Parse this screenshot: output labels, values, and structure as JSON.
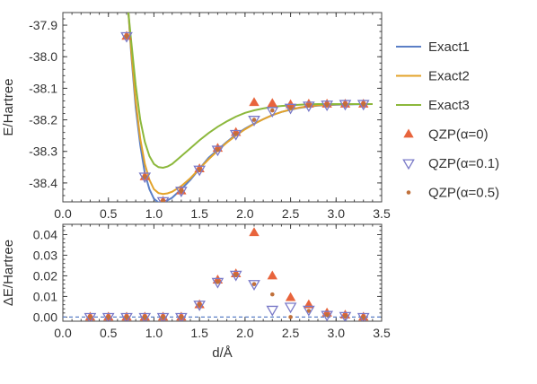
{
  "chart_data": [
    {
      "type": "line",
      "panel": "top",
      "xlabel": "",
      "ylabel": "E/Hartree",
      "xlim": [
        0.0,
        3.5
      ],
      "ylim": [
        -38.46,
        -37.86
      ],
      "x_ticks": [
        "0.0",
        "0.5",
        "1.0",
        "1.5",
        "2.0",
        "2.5",
        "3.0",
        "3.5"
      ],
      "x_tick_values": [
        0.0,
        0.5,
        1.0,
        1.5,
        2.0,
        2.5,
        3.0,
        3.5
      ],
      "y_ticks": [
        "-37.9",
        "-38.0",
        "-38.1",
        "-38.2",
        "-38.3",
        "-38.4"
      ],
      "y_tick_values": [
        -37.9,
        -38.0,
        -38.1,
        -38.2,
        -38.3,
        -38.4
      ],
      "legend_position": "right",
      "curves": [
        {
          "name": "Exact1",
          "color": "#5b7fc6",
          "x": [
            0.72,
            0.75,
            0.8,
            0.85,
            0.9,
            0.95,
            1.0,
            1.05,
            1.1,
            1.15,
            1.2,
            1.3,
            1.4,
            1.5,
            1.6,
            1.7,
            1.8,
            1.9,
            2.0,
            2.1,
            2.2,
            2.3,
            2.4,
            2.5,
            2.6,
            2.7,
            2.8,
            3.0,
            3.2,
            3.4
          ],
          "y": [
            -37.86,
            -37.99,
            -38.16,
            -38.28,
            -38.37,
            -38.42,
            -38.45,
            -38.462,
            -38.46,
            -38.455,
            -38.447,
            -38.42,
            -38.39,
            -38.355,
            -38.32,
            -38.295,
            -38.27,
            -38.247,
            -38.228,
            -38.212,
            -38.198,
            -38.185,
            -38.175,
            -38.168,
            -38.162,
            -38.158,
            -38.155,
            -38.152,
            -38.151,
            -38.15
          ]
        },
        {
          "name": "Exact2",
          "color": "#e3a32a",
          "x": [
            0.72,
            0.75,
            0.8,
            0.85,
            0.9,
            0.95,
            1.0,
            1.05,
            1.1,
            1.15,
            1.2,
            1.3,
            1.4,
            1.5,
            1.6,
            1.7,
            1.8,
            1.9,
            2.0,
            2.1,
            2.2,
            2.3,
            2.4,
            2.5,
            2.6,
            2.7,
            2.8,
            3.0,
            3.2,
            3.4
          ],
          "y": [
            -37.86,
            -37.98,
            -38.14,
            -38.26,
            -38.34,
            -38.39,
            -38.42,
            -38.432,
            -38.435,
            -38.433,
            -38.428,
            -38.41,
            -38.385,
            -38.355,
            -38.325,
            -38.298,
            -38.272,
            -38.25,
            -38.23,
            -38.213,
            -38.198,
            -38.185,
            -38.175,
            -38.167,
            -38.161,
            -38.157,
            -38.154,
            -38.151,
            -38.15,
            -38.15
          ]
        },
        {
          "name": "Exact3",
          "color": "#8cb83c",
          "x": [
            0.72,
            0.75,
            0.8,
            0.85,
            0.9,
            0.95,
            1.0,
            1.05,
            1.1,
            1.15,
            1.2,
            1.3,
            1.4,
            1.5,
            1.6,
            1.7,
            1.8,
            1.9,
            2.0,
            2.1,
            2.2,
            2.3,
            2.4,
            2.5,
            2.6,
            2.7,
            2.8,
            3.0,
            3.2,
            3.4
          ],
          "y": [
            -37.86,
            -37.95,
            -38.09,
            -38.2,
            -38.27,
            -38.315,
            -38.34,
            -38.35,
            -38.352,
            -38.348,
            -38.34,
            -38.315,
            -38.29,
            -38.265,
            -38.242,
            -38.222,
            -38.205,
            -38.19,
            -38.178,
            -38.17,
            -38.164,
            -38.159,
            -38.156,
            -38.154,
            -38.152,
            -38.151,
            -38.15,
            -38.15,
            -38.15,
            -38.15
          ]
        }
      ],
      "markers": [
        {
          "name": "QZP(α=0)",
          "shape": "triangle-up",
          "color": "#e8643c",
          "x": [
            0.7,
            0.9,
            1.1,
            1.3,
            1.5,
            1.7,
            1.9,
            2.1,
            2.3,
            2.5,
            2.7,
            2.9,
            3.1,
            3.3
          ],
          "y": [
            -37.935,
            -38.38,
            -38.458,
            -38.425,
            -38.355,
            -38.29,
            -38.24,
            -38.145,
            -38.148,
            -38.152,
            -38.15,
            -38.15,
            -38.15,
            -38.15
          ]
        },
        {
          "name": "QZP(α=0.1)",
          "shape": "triangle-down-open",
          "color": "#7a7ac8",
          "x": [
            0.7,
            0.9,
            1.1,
            1.3,
            1.5,
            1.7,
            1.9,
            2.1,
            2.3,
            2.5,
            2.7,
            2.9,
            3.1,
            3.3
          ],
          "y": [
            -37.935,
            -38.38,
            -38.458,
            -38.425,
            -38.358,
            -38.295,
            -38.245,
            -38.2,
            -38.172,
            -38.162,
            -38.155,
            -38.152,
            -38.15,
            -38.15
          ]
        },
        {
          "name": "QZP(α=0.5)",
          "shape": "dot",
          "color": "#c0703a",
          "x": [
            0.7,
            0.9,
            1.1,
            1.3,
            1.5,
            1.7,
            1.9,
            2.1,
            2.3,
            2.5,
            2.7,
            2.9,
            3.1,
            3.3
          ],
          "y": [
            -37.935,
            -38.38,
            -38.458,
            -38.425,
            -38.358,
            -38.295,
            -38.245,
            -38.2,
            -38.17,
            -38.162,
            -38.155,
            -38.152,
            -38.15,
            -38.15
          ]
        }
      ]
    },
    {
      "type": "scatter",
      "panel": "bottom",
      "xlabel": "d/Å",
      "ylabel": "ΔE/Hartree",
      "xlim": [
        0.0,
        3.5
      ],
      "ylim": [
        -0.002,
        0.045
      ],
      "x_ticks": [
        "0.0",
        "0.5",
        "1.0",
        "1.5",
        "2.0",
        "2.5",
        "3.0",
        "3.5"
      ],
      "x_tick_values": [
        0.0,
        0.5,
        1.0,
        1.5,
        2.0,
        2.5,
        3.0,
        3.5
      ],
      "y_ticks": [
        "0.04",
        "0.03",
        "0.02",
        "0.01",
        "0.00"
      ],
      "y_tick_values": [
        0.04,
        0.03,
        0.02,
        0.01,
        0.0
      ],
      "reference_line": {
        "y": 0.0,
        "style": "dashed",
        "color": "#5b7fc6"
      },
      "series": [
        {
          "name": "QZP(α=0)",
          "shape": "triangle-up",
          "color": "#e8643c",
          "x": [
            0.3,
            0.5,
            0.7,
            0.9,
            1.1,
            1.3,
            1.5,
            1.7,
            1.9,
            2.1,
            2.3,
            2.5,
            2.7,
            2.9,
            3.1,
            3.3
          ],
          "y": [
            0.0,
            0.0,
            0.0,
            0.0,
            0.0,
            0.0,
            0.006,
            0.018,
            0.021,
            0.041,
            0.02,
            0.0095,
            0.006,
            0.002,
            0.001,
            0.0
          ]
        },
        {
          "name": "QZP(α=0.1)",
          "shape": "triangle-down-open",
          "color": "#7a7ac8",
          "x": [
            0.3,
            0.5,
            0.7,
            0.9,
            1.1,
            1.3,
            1.5,
            1.7,
            1.9,
            2.1,
            2.3,
            2.5,
            2.7,
            2.9,
            3.1,
            3.3
          ],
          "y": [
            0.0,
            0.0,
            0.0,
            0.0,
            0.0,
            0.0,
            0.006,
            0.017,
            0.0205,
            0.016,
            0.0035,
            0.005,
            0.0035,
            0.001,
            0.0005,
            0.0
          ]
        },
        {
          "name": "QZP(α=0.5)",
          "shape": "dot",
          "color": "#c0703a",
          "x": [
            0.3,
            0.5,
            0.7,
            0.9,
            1.1,
            1.3,
            1.5,
            1.7,
            1.9,
            2.1,
            2.3,
            2.5,
            2.7,
            2.9,
            3.1,
            3.3
          ],
          "y": [
            0.0,
            0.0,
            0.0,
            0.0,
            0.0,
            0.0,
            0.006,
            0.017,
            0.0205,
            0.016,
            0.011,
            0.0,
            0.003,
            0.001,
            0.0005,
            0.0
          ]
        }
      ]
    }
  ],
  "legend": {
    "items": [
      {
        "label": "Exact1",
        "kind": "line",
        "color": "#5b7fc6"
      },
      {
        "label": "Exact2",
        "kind": "line",
        "color": "#e3a32a"
      },
      {
        "label": "Exact3",
        "kind": "line",
        "color": "#8cb83c"
      },
      {
        "label": "QZP(α=0)",
        "kind": "triangle-up",
        "color": "#e8643c"
      },
      {
        "label": "QZP(α=0.1)",
        "kind": "triangle-down-open",
        "color": "#7a7ac8"
      },
      {
        "label": "QZP(α=0.5)",
        "kind": "dot",
        "color": "#c0703a"
      }
    ]
  }
}
